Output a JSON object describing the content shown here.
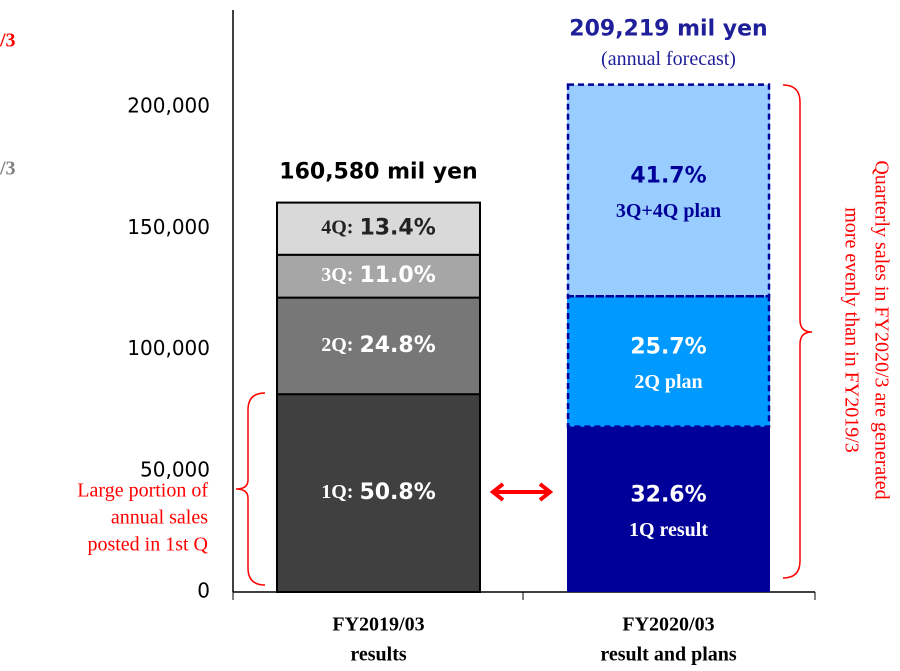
{
  "chart_data": {
    "type": "stacked_bar",
    "categories": [
      [
        "FY2019/03",
        "results"
      ],
      [
        "FY2020/03",
        "result and plans"
      ]
    ],
    "totals": [
      "160,580 mil yen",
      "209,219 mil yen"
    ],
    "total_note": "(annual forecast)",
    "ylim": [
      0,
      240000
    ],
    "yticks": [
      {
        "value": 0,
        "label": "0"
      },
      {
        "value": 50000,
        "label": "50,000"
      },
      {
        "value": 100000,
        "label": "100,000"
      },
      {
        "value": 150000,
        "label": "150,000"
      },
      {
        "value": 200000,
        "label": "200,000"
      }
    ],
    "bars": [
      {
        "segments": [
          {
            "prefix": "1Q:",
            "share": "50.8%",
            "value": 81575,
            "color": "#404040",
            "text_color": "#ffffff"
          },
          {
            "prefix": "2Q:",
            "share": "24.8%",
            "value": 39824,
            "color": "#777777",
            "text_color": "#ffffff"
          },
          {
            "prefix": "3Q:",
            "share": "11.0%",
            "value": 17664,
            "color": "#a6a6a6",
            "text_color": "#ffffff"
          },
          {
            "prefix": "4Q:",
            "share": "13.4%",
            "value": 21518,
            "color": "#d9d9d9",
            "text_color": "#222222"
          }
        ]
      },
      {
        "segments": [
          {
            "share": "32.6%",
            "note": "1Q result",
            "value": 68205,
            "color": "#000099",
            "text_color": "#ffffff"
          },
          {
            "share": "25.7%",
            "note": "2Q plan",
            "value": 53769,
            "color": "#0099ff",
            "text_color": "#ffffff",
            "dashed": true
          },
          {
            "share": "41.7%",
            "note": "3Q+4Q plan",
            "value": 87244,
            "color": "#99ccff",
            "text_color": "#000099",
            "dashed": true
          }
        ]
      }
    ],
    "annotations": {
      "left": [
        "Large portion of",
        "annual sales",
        "posted in 1st Q"
      ],
      "right": [
        "Quarterly sales in FY2020/3 are generated",
        "more evenly than in FY2019/3"
      ],
      "cut_top": "/3",
      "cut_mid": "/3"
    }
  }
}
